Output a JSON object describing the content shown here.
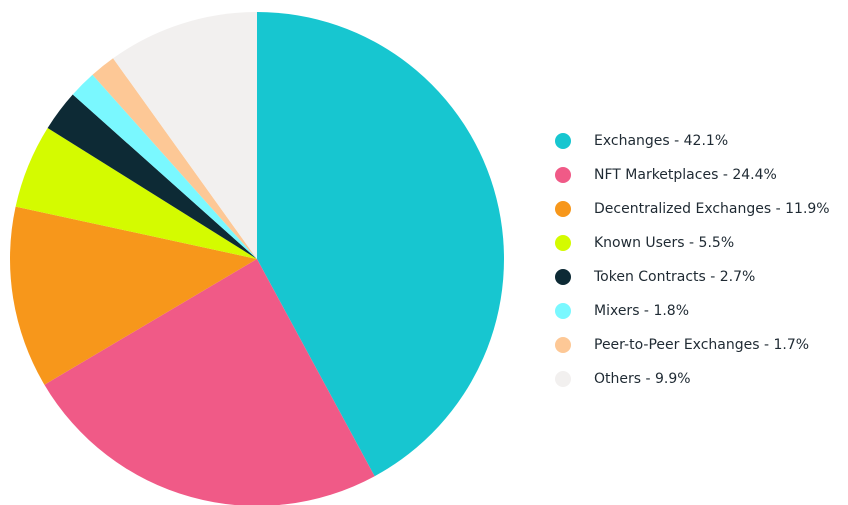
{
  "chart_data": {
    "type": "pie",
    "categories": [
      "Exchanges - 42.1%",
      "NFT Marketplaces - 24.4%",
      "Decentralized Exchanges - 11.9%",
      "Known Users - 5.5%",
      "Token Contracts - 2.7%",
      "Mixers - 1.8%",
      "Peer-to-Peer Exchanges - 1.7%",
      "Others - 9.9%"
    ],
    "values": [
      42.1,
      24.4,
      11.9,
      5.5,
      2.7,
      1.8,
      1.7,
      9.9
    ],
    "colors": [
      "#17c6d0",
      "#f05a87",
      "#f7971b",
      "#d4fb00",
      "#0d2a35",
      "#7af8ff",
      "#fdc896",
      "#f2f0ef"
    ],
    "legend": "right"
  }
}
